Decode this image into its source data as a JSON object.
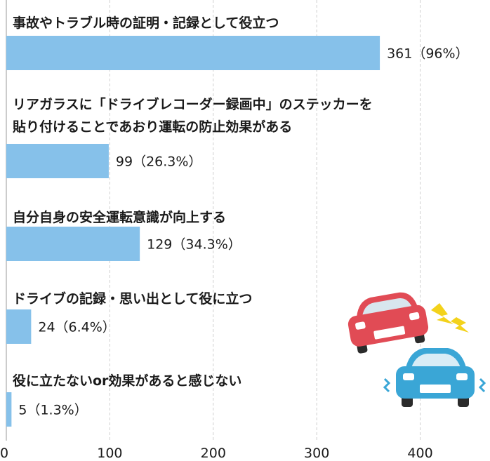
{
  "chart_data": {
    "type": "bar",
    "orientation": "horizontal",
    "categories": [
      [
        "事故やトラブル時の証明・記録として役立つ"
      ],
      [
        "リアガラスに「ドライブレコーダー録画中」のステッカーを",
        "貼り付けることであおり運転の防止効果がある"
      ],
      [
        "自分自身の安全運転意識が向上する"
      ],
      [
        "ドライブの記録・思い出として役に立つ"
      ],
      [
        "役に立たないor効果があると感じない"
      ]
    ],
    "values": [
      361,
      99,
      129,
      24,
      5
    ],
    "value_labels": [
      "361（96%）",
      "99（26.3%）",
      "129（34.3%）",
      "24（6.4%）",
      "5（1.3%）"
    ],
    "xlim": [
      0,
      460
    ],
    "xticks": [
      "0",
      "100",
      "200",
      "300",
      "400"
    ],
    "grid": true,
    "bar_color": "#86c1ea"
  },
  "illustration": {
    "icon": "car-collision-icon",
    "colors": {
      "red_car": "#e14b55",
      "blue_car": "#3aa6d6",
      "spark": "#f3d21b"
    }
  }
}
